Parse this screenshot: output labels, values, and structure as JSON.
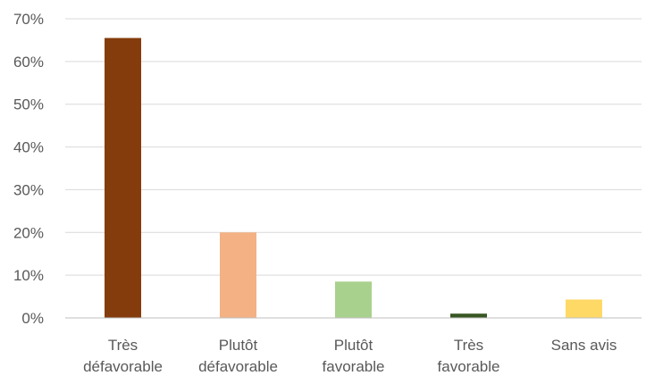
{
  "chart_data": {
    "type": "bar",
    "categories": [
      [
        "Très",
        "défavorable"
      ],
      [
        "Plutôt",
        "défavorable"
      ],
      [
        "Plutôt",
        "favorable"
      ],
      [
        "Très",
        "favorable"
      ],
      [
        "Sans avis"
      ]
    ],
    "values": [
      65.5,
      20.0,
      8.5,
      1.0,
      4.3
    ],
    "colors": [
      "#843C0C",
      "#F4B183",
      "#A9D18E",
      "#385723",
      "#FFD966"
    ],
    "ylim": [
      0,
      70
    ],
    "yticks": [
      0,
      10,
      20,
      30,
      40,
      50,
      60,
      70
    ],
    "ytick_suffix": "%",
    "grid": true,
    "legend": "none",
    "title": "",
    "xlabel": "",
    "ylabel": ""
  }
}
